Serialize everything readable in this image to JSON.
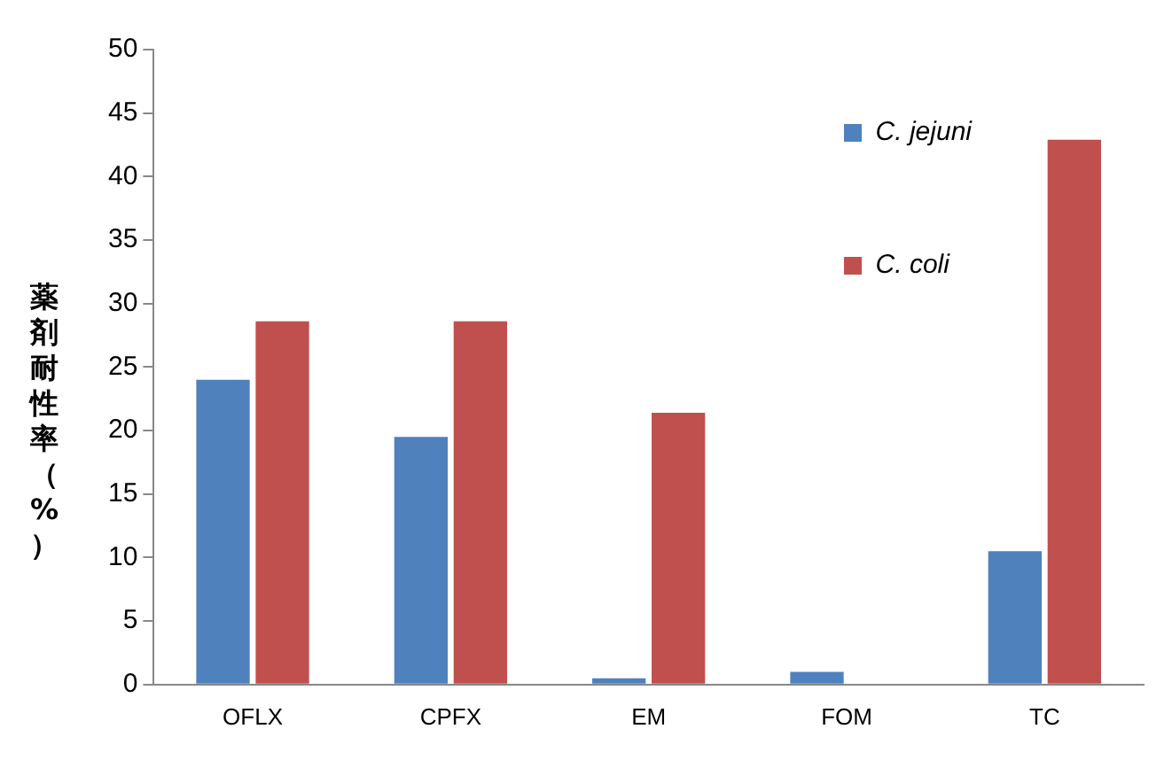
{
  "chart_data": {
    "type": "bar",
    "ylabel": "薬剤耐性率（%）",
    "categories": [
      "OFLX",
      "CPFX",
      "EM",
      "FOM",
      "TC"
    ],
    "series": [
      {
        "name": "C. jejuni",
        "color": "#4f81bd",
        "values": [
          24,
          19.5,
          0.5,
          1,
          10.5
        ]
      },
      {
        "name": "C. coli",
        "color": "#c0504d",
        "values": [
          28.6,
          28.6,
          21.4,
          0,
          42.9
        ]
      }
    ],
    "ylim": [
      0,
      50
    ],
    "yticks": [
      0,
      5,
      10,
      15,
      20,
      25,
      30,
      35,
      40,
      45,
      50
    ],
    "grid": false,
    "legend": "top right"
  }
}
